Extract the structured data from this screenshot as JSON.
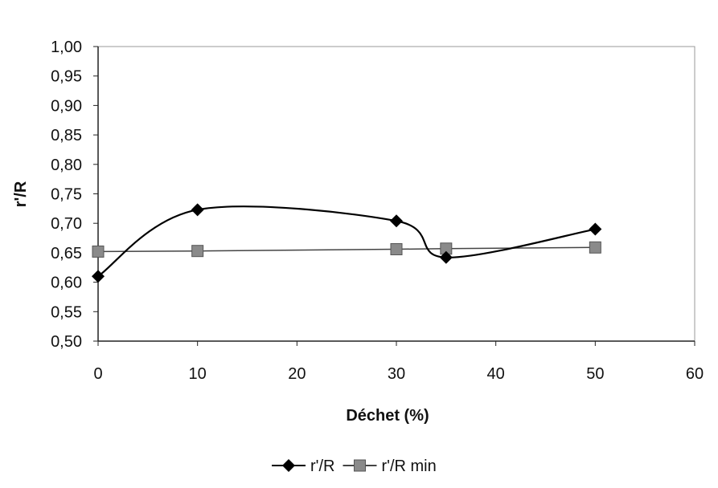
{
  "chart_data": {
    "type": "line",
    "xlabel": "Déchet (%)",
    "ylabel": "r'/R",
    "xlim": [
      0,
      60
    ],
    "ylim": [
      0.5,
      1.0
    ],
    "x_ticks": [
      "0",
      "10",
      "20",
      "30",
      "40",
      "50",
      "60"
    ],
    "y_ticks": [
      "1,00",
      "0,95",
      "0,90",
      "0,85",
      "0,80",
      "0,75",
      "0,70",
      "0,65",
      "0,60",
      "0,55",
      "0,50"
    ],
    "grid": false,
    "legend_position": "bottom",
    "series": [
      {
        "name": "r'/R",
        "marker": "diamond",
        "color": "#000000",
        "smooth": true,
        "x": [
          0,
          10,
          30,
          35,
          50
        ],
        "y": [
          0.61,
          0.723,
          0.704,
          0.642,
          0.69
        ]
      },
      {
        "name": "r'/R min",
        "marker": "square",
        "color": "#8a8a8a",
        "smooth": false,
        "x": [
          0,
          10,
          30,
          35,
          50
        ],
        "y": [
          0.652,
          0.653,
          0.656,
          0.657,
          0.659
        ]
      }
    ]
  }
}
